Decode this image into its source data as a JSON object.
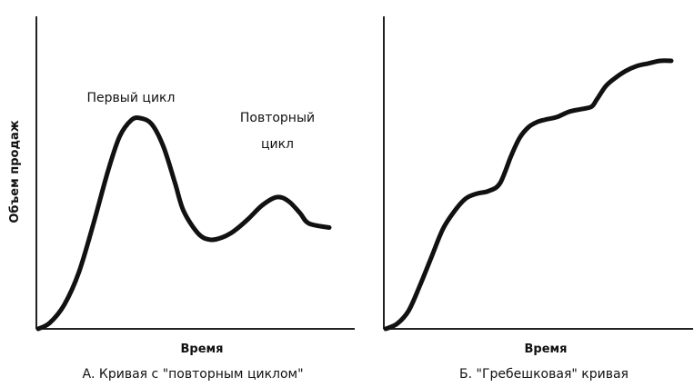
{
  "ylabel": "Объем продаж",
  "chart_data": [
    {
      "type": "line",
      "caption": "А. Кривая с \"повторным циклом\"",
      "xlabel": "Время",
      "ylabel": "Объем продаж",
      "annotations": [
        {
          "text": "Первый цикл",
          "x": 37,
          "y": 1.05
        },
        {
          "text": "Повторный",
          "x": 82,
          "y": 0.8
        },
        {
          "text": "цикл",
          "x": 82,
          "y": 0.7
        }
      ],
      "series": [
        {
          "x": [
            0,
            4,
            9,
            14,
            19,
            24,
            28,
            32,
            35,
            39,
            43,
            47,
            50,
            55,
            59,
            63,
            67,
            72,
            77,
            82,
            86,
            90,
            93,
            100
          ],
          "y": [
            0,
            0.03,
            0.12,
            0.28,
            0.52,
            0.78,
            0.95,
            1.03,
            1.04,
            1.01,
            0.9,
            0.72,
            0.58,
            0.47,
            0.44,
            0.45,
            0.48,
            0.54,
            0.61,
            0.65,
            0.63,
            0.57,
            0.52,
            0.5
          ]
        }
      ]
    },
    {
      "type": "line",
      "caption": "Б. \"Гребешковая\" кривая",
      "xlabel": "Время",
      "series": [
        {
          "x": [
            0,
            4,
            8,
            12,
            16,
            20,
            24,
            28,
            32,
            36,
            40,
            44,
            47,
            50,
            53,
            56,
            60,
            64,
            68,
            72,
            74,
            77,
            80,
            84,
            88,
            92,
            96,
            100
          ],
          "y": [
            0,
            0.02,
            0.07,
            0.17,
            0.28,
            0.39,
            0.46,
            0.51,
            0.53,
            0.54,
            0.57,
            0.68,
            0.75,
            0.79,
            0.81,
            0.82,
            0.83,
            0.85,
            0.86,
            0.87,
            0.9,
            0.95,
            0.98,
            1.01,
            1.03,
            1.04,
            1.05,
            1.05
          ]
        }
      ]
    }
  ]
}
